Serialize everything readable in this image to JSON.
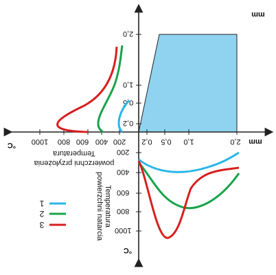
{
  "colors": {
    "series1": "#29b6e8",
    "series2": "#17a34a",
    "series3": "#d81e1e",
    "fill": "#8fd3f0",
    "axis": "#222222"
  },
  "units": {
    "right_top": "mm",
    "right_bottom": "mm",
    "left": "°C",
    "bottom": "°C"
  },
  "axis_labels": {
    "left_title_line1": "Temperatura",
    "left_title_line2": "powierzchni przyłożenia",
    "bottom_title_line1": "Temperatura",
    "bottom_title_line2": "powierzchni natarcia"
  },
  "ticks": {
    "top_vertical": [
      "0,2",
      "0,5",
      "1,0",
      "2,0"
    ],
    "right_horizontal": [
      "0,2",
      "0,5",
      "1,0",
      "2,0"
    ],
    "left_horizontal": [
      "1000",
      "800",
      "600",
      "400",
      "200"
    ],
    "bottom_vertical": [
      "200",
      "400",
      "600",
      "800",
      "1000"
    ]
  },
  "legend": {
    "items": [
      {
        "label": "1",
        "color_key": "series1"
      },
      {
        "label": "2",
        "color_key": "series2"
      },
      {
        "label": "3",
        "color_key": "series3"
      }
    ]
  }
}
